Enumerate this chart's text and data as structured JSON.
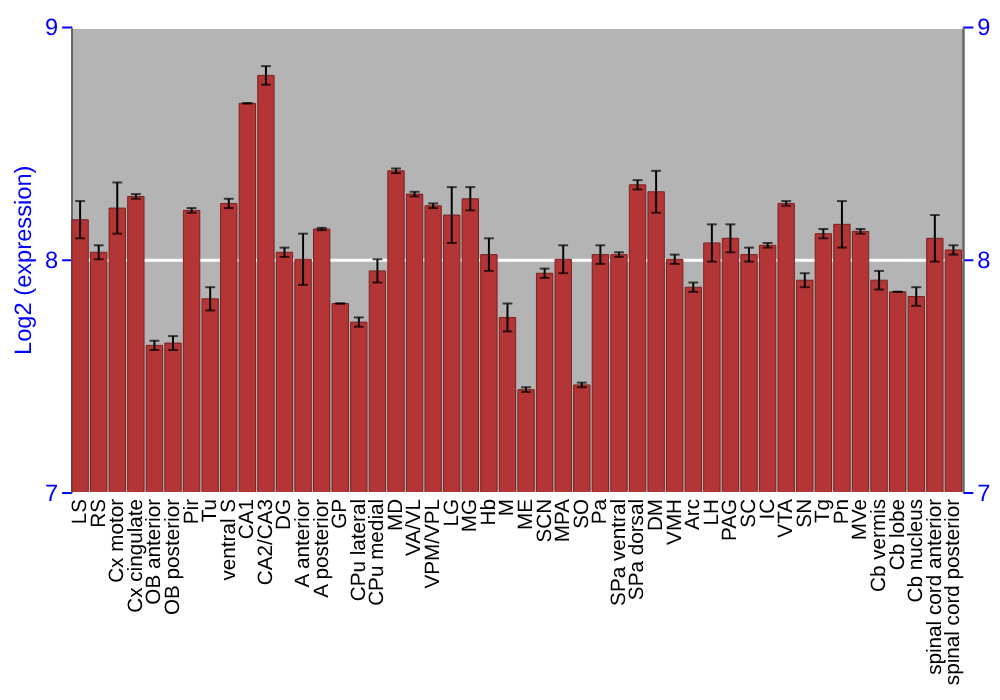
{
  "chart_data": {
    "type": "bar",
    "ylabel": "Log2 (expression)",
    "categories": [
      "LS",
      "RS",
      "Cx motor",
      "Cx cingulate",
      "OB anterior",
      "OB posterior",
      "Pir",
      "Tu",
      "ventral S",
      "CA1",
      "CA2/CA3",
      "DG",
      "A anterior",
      "A posterior",
      "GP",
      "CPu lateral",
      "CPu medial",
      "MD",
      "VA/VL",
      "VPM/VPL",
      "LG",
      "MG",
      "Hb",
      "M",
      "ME",
      "SCN",
      "MPA",
      "SO",
      "Pa",
      "SPa ventral",
      "SPa dorsal",
      "DM",
      "VMH",
      "Arc",
      "LH",
      "PAG",
      "SC",
      "IC",
      "VTA",
      "SN",
      "Tg",
      "Pn",
      "MVe",
      "Cb vermis",
      "Cb lobe",
      "Cb nucleus",
      "spinal cord anterior",
      "spinal cord posterior"
    ],
    "values": [
      8.17,
      8.03,
      8.22,
      8.27,
      7.63,
      7.64,
      8.21,
      7.83,
      8.24,
      8.67,
      8.79,
      8.03,
      8.0,
      8.13,
      7.81,
      7.73,
      7.95,
      8.38,
      8.28,
      8.23,
      8.19,
      8.26,
      8.02,
      7.75,
      7.44,
      7.94,
      8.0,
      7.46,
      8.02,
      8.02,
      8.32,
      8.29,
      8.0,
      7.88,
      8.07,
      8.09,
      8.02,
      8.06,
      8.24,
      7.91,
      8.11,
      8.15,
      8.12,
      7.91,
      7.86,
      7.84,
      8.09,
      8.04
    ],
    "errors": [
      0.08,
      0.03,
      0.11,
      0.01,
      0.02,
      0.03,
      0.01,
      0.05,
      0.02,
      0,
      0.04,
      0.02,
      0.11,
      0.005,
      0,
      0.02,
      0.05,
      0.01,
      0.01,
      0.01,
      0.12,
      0.05,
      0.07,
      0.06,
      0.01,
      0.02,
      0.06,
      0.01,
      0.04,
      0.01,
      0.02,
      0.09,
      0.02,
      0.02,
      0.08,
      0.06,
      0.03,
      0.01,
      0.01,
      0.03,
      0.02,
      0.1,
      0.01,
      0.04,
      0,
      0.04,
      0.1,
      0.02
    ],
    "color": "#b33535",
    "ylim": [
      7,
      9
    ],
    "yticks": [
      7,
      8,
      9
    ],
    "y2lim": [
      7,
      9
    ],
    "y2ticks": [
      7,
      8,
      9
    ],
    "grid": "y"
  }
}
